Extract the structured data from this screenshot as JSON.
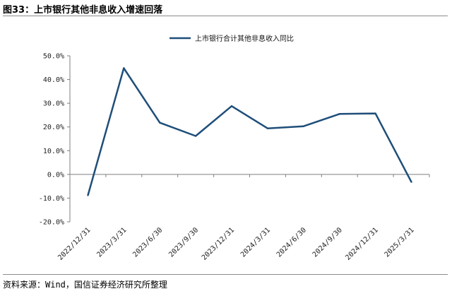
{
  "figure": {
    "title": "图33：上市银行其他非息收入增速回落",
    "source": "资料来源：Wind，国信证券经济研究所整理"
  },
  "chart_data": {
    "type": "line",
    "x": [
      "2022/12/31",
      "2023/3/31",
      "2023/6/30",
      "2023/9/30",
      "2023/12/31",
      "2024/3/31",
      "2024/6/30",
      "2024/9/30",
      "2024/12/31",
      "2025/3/31"
    ],
    "series": [
      {
        "name": "上市银行合计其他非息收入同比",
        "values": [
          -8.8,
          44.8,
          21.8,
          16.2,
          28.8,
          19.4,
          20.3,
          25.5,
          25.7,
          -3.2
        ],
        "color": "#1f4e79"
      }
    ],
    "y_ticks": [
      "50.0%",
      "40.0%",
      "30.0%",
      "20.0%",
      "10.0%",
      "0.0%",
      "-10.0%",
      "-20.0%"
    ],
    "ylim": [
      -20,
      50
    ],
    "legend_position": "top-center",
    "grid": false
  }
}
